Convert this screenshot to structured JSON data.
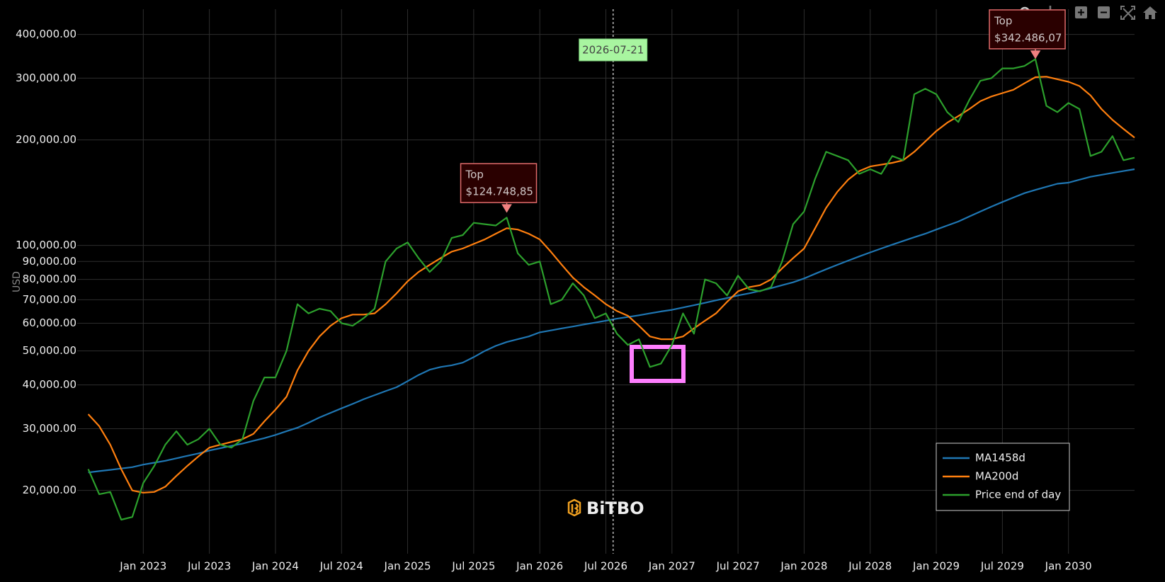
{
  "chart_data": {
    "type": "line",
    "y_axis_label": "USD",
    "log_y": true,
    "grid": true,
    "legend_position": "bottom-right",
    "xlim": [
      "2022-07",
      "2030-07"
    ],
    "ylim": [
      13200,
      472000
    ],
    "xticks": [
      {
        "value": "2023-01",
        "label": "Jan 2023"
      },
      {
        "value": "2023-07",
        "label": "Jul 2023"
      },
      {
        "value": "2024-01",
        "label": "Jan 2024"
      },
      {
        "value": "2024-07",
        "label": "Jul 2024"
      },
      {
        "value": "2025-01",
        "label": "Jan 2025"
      },
      {
        "value": "2025-07",
        "label": "Jul 2025"
      },
      {
        "value": "2026-01",
        "label": "Jan 2026"
      },
      {
        "value": "2026-07",
        "label": "Jul 2026"
      },
      {
        "value": "2027-01",
        "label": "Jan 2027"
      },
      {
        "value": "2027-07",
        "label": "Jul 2027"
      },
      {
        "value": "2028-01",
        "label": "Jan 2028"
      },
      {
        "value": "2028-07",
        "label": "Jul 2028"
      },
      {
        "value": "2029-01",
        "label": "Jan 2029"
      },
      {
        "value": "2029-07",
        "label": "Jul 2029"
      },
      {
        "value": "2030-01",
        "label": "Jan 2030"
      }
    ],
    "yticks": [
      {
        "value": 20000,
        "label": "20,000.00"
      },
      {
        "value": 30000,
        "label": "30,000.00"
      },
      {
        "value": 40000,
        "label": "40,000.00"
      },
      {
        "value": 50000,
        "label": "50,000.00"
      },
      {
        "value": 60000,
        "label": "60,000.00"
      },
      {
        "value": 70000,
        "label": "70,000.00"
      },
      {
        "value": 80000,
        "label": "80,000.00"
      },
      {
        "value": 90000,
        "label": "90,000.00"
      },
      {
        "value": 100000,
        "label": "100,000.00"
      },
      {
        "value": 200000,
        "label": "200,000.00"
      },
      {
        "value": 300000,
        "label": "300,000.00"
      },
      {
        "value": 400000,
        "label": "400,000.00"
      }
    ],
    "x": [
      "2022-08",
      "2022-09",
      "2022-10",
      "2022-11",
      "2022-12",
      "2023-01",
      "2023-02",
      "2023-03",
      "2023-04",
      "2023-05",
      "2023-06",
      "2023-07",
      "2023-08",
      "2023-09",
      "2023-10",
      "2023-11",
      "2023-12",
      "2024-01",
      "2024-02",
      "2024-03",
      "2024-04",
      "2024-05",
      "2024-06",
      "2024-07",
      "2024-08",
      "2024-09",
      "2024-10",
      "2024-11",
      "2024-12",
      "2025-01",
      "2025-02",
      "2025-03",
      "2025-04",
      "2025-05",
      "2025-06",
      "2025-07",
      "2025-08",
      "2025-09",
      "2025-10",
      "2025-11",
      "2025-12",
      "2026-01",
      "2026-02",
      "2026-03",
      "2026-04",
      "2026-05",
      "2026-06",
      "2026-07",
      "2026-08",
      "2026-09",
      "2026-10",
      "2026-11",
      "2026-12",
      "2027-01",
      "2027-02",
      "2027-03",
      "2027-04",
      "2027-05",
      "2027-06",
      "2027-07",
      "2027-08",
      "2027-09",
      "2027-10",
      "2027-11",
      "2027-12",
      "2028-01",
      "2028-02",
      "2028-03",
      "2028-04",
      "2028-05",
      "2028-06",
      "2028-07",
      "2028-08",
      "2028-09",
      "2028-10",
      "2028-11",
      "2028-12",
      "2029-01",
      "2029-02",
      "2029-03",
      "2029-04",
      "2029-05",
      "2029-06",
      "2029-07",
      "2029-08",
      "2029-09",
      "2029-10",
      "2029-11",
      "2029-12",
      "2030-01",
      "2030-02",
      "2030-03",
      "2030-04",
      "2030-05",
      "2030-06",
      "2030-07"
    ],
    "series": [
      {
        "name": "MA1458d",
        "color": "#1f77b4",
        "values": [
          22500,
          22700,
          22900,
          23100,
          23300,
          23700,
          24000,
          24300,
          24700,
          25100,
          25500,
          26000,
          26400,
          26800,
          27200,
          27700,
          28200,
          28800,
          29500,
          30200,
          31200,
          32300,
          33300,
          34300,
          35300,
          36400,
          37400,
          38400,
          39400,
          41000,
          42700,
          44200,
          45000,
          45500,
          46300,
          48000,
          50000,
          51700,
          53000,
          54000,
          55000,
          56500,
          57200,
          58000,
          58700,
          59500,
          60200,
          61000,
          61800,
          62500,
          63200,
          64000,
          64800,
          65500,
          66500,
          67500,
          68600,
          69700,
          70800,
          72000,
          73000,
          74200,
          75500,
          77000,
          78500,
          80500,
          83000,
          85500,
          88000,
          90500,
          93000,
          95500,
          98000,
          100500,
          103000,
          105500,
          108000,
          111000,
          114000,
          117000,
          121000,
          125000,
          129000,
          133000,
          137000,
          141000,
          144000,
          147000,
          150000,
          151000,
          154000,
          157000,
          159000,
          161000,
          163000,
          165000
        ]
      },
      {
        "name": "MA200d",
        "color": "#ff7f0e",
        "values": [
          33000,
          30500,
          27000,
          23000,
          20000,
          19700,
          19800,
          20500,
          22000,
          23500,
          25000,
          26500,
          27000,
          27500,
          28000,
          29000,
          31500,
          34000,
          37000,
          44000,
          50000,
          55000,
          59000,
          62000,
          63500,
          63500,
          64000,
          68000,
          73000,
          79000,
          84000,
          88000,
          92000,
          96000,
          98000,
          101000,
          104000,
          108000,
          112000,
          111000,
          108000,
          104000,
          96000,
          88000,
          81000,
          76000,
          72000,
          68000,
          65000,
          63000,
          59000,
          55000,
          54000,
          54000,
          55000,
          58000,
          61000,
          64000,
          69000,
          74000,
          76000,
          77000,
          80000,
          86000,
          92000,
          98000,
          112000,
          128000,
          142000,
          154000,
          163000,
          168000,
          170000,
          172000,
          175000,
          185000,
          198000,
          212000,
          224000,
          234000,
          245000,
          258000,
          266000,
          272000,
          278000,
          290000,
          302000,
          303000,
          298000,
          293000,
          285000,
          268000,
          245000,
          228000,
          215000,
          203000
        ]
      },
      {
        "name": "Price end of day",
        "color": "#2ca02c",
        "values": [
          23000,
          19500,
          19800,
          16500,
          16800,
          21000,
          23500,
          27000,
          29500,
          27000,
          28000,
          30000,
          27000,
          26500,
          28000,
          36000,
          42000,
          42000,
          50000,
          68000,
          64000,
          66000,
          65000,
          60000,
          59000,
          62000,
          66000,
          90000,
          98000,
          102000,
          92000,
          84000,
          90000,
          105000,
          107000,
          116000,
          115000,
          114000,
          120000,
          95000,
          88000,
          90000,
          68000,
          70000,
          78000,
          72000,
          62000,
          64000,
          56000,
          52000,
          54000,
          45000,
          46000,
          52000,
          64000,
          56000,
          80000,
          78000,
          72000,
          82000,
          75000,
          74000,
          76000,
          90000,
          115000,
          125000,
          155000,
          185000,
          180000,
          175000,
          160000,
          165000,
          160000,
          180000,
          175000,
          270000,
          280000,
          270000,
          240000,
          225000,
          260000,
          295000,
          300000,
          320000,
          320000,
          325000,
          340000,
          250000,
          240000,
          255000,
          245000,
          180000,
          185000,
          205000,
          175000,
          178000
        ]
      }
    ],
    "annotations": [
      {
        "text": "Top",
        "x": "2025-10",
        "value": 124748.85,
        "label": "$124.748,85"
      },
      {
        "text": "Top",
        "x": "2029-10",
        "value": 342486.07,
        "label": "$342.486,07"
      }
    ],
    "marker_line": {
      "date": "2026-07-21"
    },
    "watermark": "BiTBO"
  }
}
